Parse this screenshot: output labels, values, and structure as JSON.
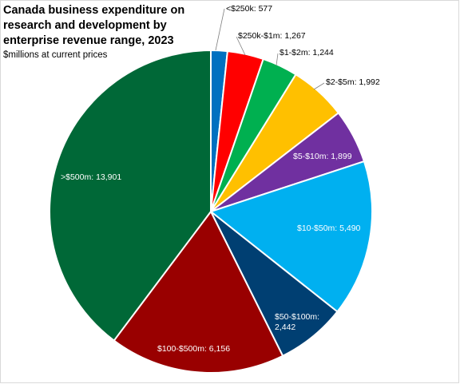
{
  "chart_data": {
    "type": "pie",
    "title": "Canada business expenditure on research and development by enterprise revenue range, 2023",
    "subtitle": "$millions at current prices",
    "slices": [
      {
        "label": "<$250k:",
        "value": 577,
        "value_text": "577",
        "color": "#0070C0"
      },
      {
        "label": "$250k-$1m:",
        "value": 1267,
        "value_text": "1,267",
        "color": "#FF0000"
      },
      {
        "label": "$1-$2m:",
        "value": 1244,
        "value_text": "1,244",
        "color": "#00B050"
      },
      {
        "label": "$2-$5m:",
        "value": 1992,
        "value_text": "1,992",
        "color": "#FFC000"
      },
      {
        "label": "$5-$10m:",
        "value": 1899,
        "value_text": "1,899",
        "color": "#7030A0"
      },
      {
        "label": "$10-$50m:",
        "value": 5490,
        "value_text": "5,490",
        "color": "#00B0F0"
      },
      {
        "label": "$50-$100m:",
        "value": 2442,
        "value_text": "2,442",
        "color": "#003F72"
      },
      {
        "label": "$100-$500m:",
        "value": 6156,
        "value_text": "6,156",
        "color": "#990000"
      },
      {
        "label": ">$500m:",
        "value": 13901,
        "value_text": "13,901",
        "color": "#006837"
      }
    ]
  }
}
